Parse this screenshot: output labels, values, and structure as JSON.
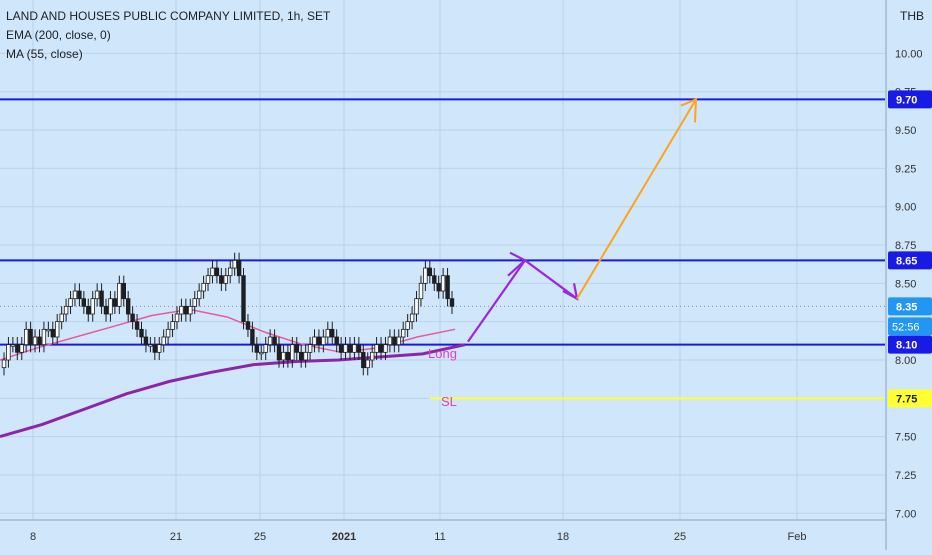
{
  "header": {
    "title": "LAND AND HOUSES PUBLIC COMPANY LIMITED, 1h, SET",
    "indicators": [
      "EMA (200, close, 0)",
      "MA (55, close)"
    ]
  },
  "currency": "THB",
  "colors": {
    "background": "#cfe6fb",
    "grid": "#b9d3ea",
    "candle": "#1d1f22",
    "level_line": "#1a1ae6",
    "ema": "#8e24aa",
    "ma": "#e75b9a",
    "stop_loss": "#ffff33",
    "path_purple": "#9c27e0",
    "path_orange": "#ffa31a",
    "label_long": "#e040c0"
  },
  "annotations": {
    "long_label": "Long",
    "sl_label": "SL",
    "countdown": "52:56"
  },
  "chart_data": {
    "type": "line",
    "y_axis": {
      "ylim": [
        7.0,
        10.25
      ],
      "ticks": [
        "10.00",
        "9.75",
        "9.50",
        "9.25",
        "9.00",
        "8.75",
        "8.50",
        "8.25",
        "8.00",
        "7.75",
        "7.50",
        "7.25",
        "7.00"
      ],
      "side": "right"
    },
    "x_axis": {
      "ticks": [
        "8",
        "21",
        "25",
        "2021",
        "11",
        "18",
        "25",
        "Feb"
      ]
    },
    "price_levels": [
      {
        "value": 9.7,
        "label": "9.70",
        "style": "resistance"
      },
      {
        "value": 8.65,
        "label": "8.65",
        "style": "resistance"
      },
      {
        "value": 8.1,
        "label": "8.10",
        "style": "support"
      },
      {
        "value": 7.75,
        "label": "7.75",
        "style": "stop-loss"
      }
    ],
    "last_price": {
      "value": 8.35,
      "label": "8.35"
    },
    "candles_close": [
      8.0,
      8.1,
      8.1,
      8.05,
      8.1,
      8.2,
      8.1,
      8.15,
      8.1,
      8.2,
      8.2,
      8.15,
      8.25,
      8.3,
      8.35,
      8.4,
      8.45,
      8.4,
      8.35,
      8.3,
      8.4,
      8.45,
      8.35,
      8.3,
      8.4,
      8.35,
      8.5,
      8.4,
      8.3,
      8.25,
      8.2,
      8.15,
      8.1,
      8.1,
      8.05,
      8.1,
      8.15,
      8.2,
      8.25,
      8.3,
      8.35,
      8.3,
      8.35,
      8.4,
      8.45,
      8.5,
      8.55,
      8.6,
      8.55,
      8.5,
      8.55,
      8.6,
      8.65,
      8.55,
      8.25,
      8.2,
      8.1,
      8.05,
      8.05,
      8.1,
      8.15,
      8.1,
      8.0,
      8.05,
      8.0,
      8.1,
      8.05,
      8.0,
      8.05,
      8.1,
      8.15,
      8.1,
      8.15,
      8.2,
      8.15,
      8.1,
      8.05,
      8.1,
      8.05,
      8.1,
      8.05,
      7.95,
      8.0,
      8.05,
      8.1,
      8.05,
      8.1,
      8.15,
      8.1,
      8.15,
      8.2,
      8.25,
      8.3,
      8.4,
      8.5,
      8.6,
      8.55,
      8.5,
      8.45,
      8.55,
      8.4,
      8.35
    ],
    "series": [
      {
        "name": "EMA (200, close, 0)",
        "values": [
          7.5,
          7.58,
          7.68,
          7.78,
          7.86,
          7.92,
          7.97,
          7.99,
          8.0,
          8.02,
          8.04,
          8.1
        ]
      },
      {
        "name": "MA (55, close)",
        "values": [
          8.0,
          8.08,
          8.15,
          8.22,
          8.29,
          8.33,
          8.28,
          8.18,
          8.1,
          8.05,
          8.08,
          8.15,
          8.2
        ]
      }
    ]
  }
}
